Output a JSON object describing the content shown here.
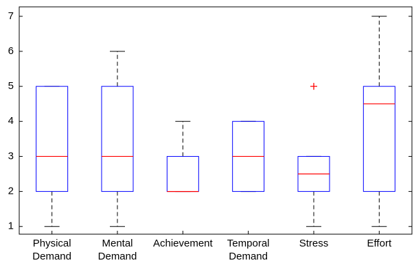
{
  "chart_data": {
    "type": "box",
    "categories": [
      "Physical\nDemand",
      "Mental\nDemand",
      "Achievement",
      "Temporal\nDemand",
      "Stress",
      "Effort"
    ],
    "min": [
      1,
      1,
      2,
      2,
      1,
      1
    ],
    "q1": [
      2,
      2,
      2,
      2,
      2,
      2
    ],
    "median": [
      3,
      3,
      2,
      3,
      2.5,
      4.5
    ],
    "q3": [
      5,
      5,
      3,
      4,
      3,
      5
    ],
    "max": [
      5,
      6,
      4,
      4,
      3,
      7
    ],
    "outliers": [
      [],
      [],
      [],
      [],
      [
        5
      ],
      []
    ],
    "box_color": "#0000ff",
    "median_color": "#ff0000",
    "whisker_color": "#000000",
    "ylim": [
      0.78,
      7.27
    ],
    "yticks": [
      1,
      2,
      3,
      4,
      5,
      6,
      7
    ]
  }
}
